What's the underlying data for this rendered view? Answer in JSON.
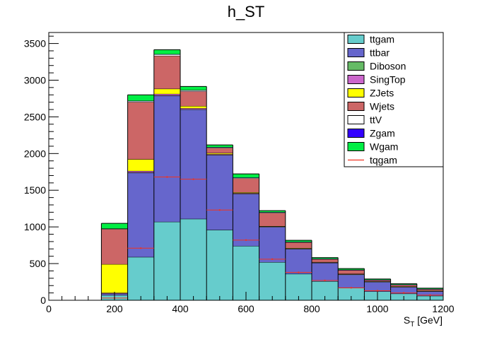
{
  "chart_data": {
    "type": "bar",
    "title": "h_ST",
    "xlabel": {
      "main": "S",
      "sub": "T",
      "unit": " [GeV]"
    },
    "ylabel": "",
    "xlim": [
      0,
      1200
    ],
    "ylim": [
      0,
      3650
    ],
    "x_ticks": [
      0,
      200,
      400,
      600,
      800,
      1000,
      1200
    ],
    "y_ticks": [
      0,
      500,
      1000,
      1500,
      2000,
      2500,
      3000,
      3500
    ],
    "bin_edges": [
      160,
      240,
      320,
      400,
      480,
      560,
      640,
      720,
      800,
      880,
      960,
      1040,
      1120,
      1200
    ],
    "stack_order": [
      "ttgam",
      "ttbar",
      "Diboson",
      "SingTop",
      "ZJets",
      "Wjets",
      "ttV",
      "Zgam",
      "Wgam"
    ],
    "series": [
      {
        "name": "ttgam",
        "color": "#66cccc",
        "values": [
          70,
          590,
          1070,
          1110,
          960,
          740,
          520,
          360,
          260,
          170,
          120,
          90,
          60
        ]
      },
      {
        "name": "ttbar",
        "color": "#6666cc",
        "values": [
          20,
          1150,
          1720,
          1490,
          1020,
          710,
          480,
          340,
          250,
          180,
          130,
          90,
          60
        ]
      },
      {
        "name": "Diboson",
        "color": "#66bb66",
        "values": [
          2,
          3,
          3,
          3,
          2,
          2,
          1,
          1,
          1,
          1,
          1,
          1,
          1
        ]
      },
      {
        "name": "SingTop",
        "color": "#cc66cc",
        "values": [
          10,
          20,
          20,
          15,
          10,
          10,
          5,
          5,
          5,
          5,
          5,
          5,
          5
        ]
      },
      {
        "name": "ZJets",
        "color": "#ffff00",
        "values": [
          390,
          160,
          70,
          30,
          15,
          10,
          5,
          5,
          5,
          5,
          5,
          5,
          5
        ]
      },
      {
        "name": "Wjets",
        "color": "#cc6666",
        "values": [
          480,
          780,
          450,
          200,
          70,
          190,
          180,
          80,
          40,
          50,
          15,
          20,
          20
        ]
      },
      {
        "name": "ttV",
        "color": "#ffffff",
        "values": [
          5,
          15,
          20,
          15,
          10,
          10,
          10,
          5,
          5,
          5,
          3,
          3,
          3
        ]
      },
      {
        "name": "Zgam",
        "color": "#3300ff",
        "values": [
          1,
          2,
          2,
          2,
          1,
          1,
          1,
          1,
          1,
          1,
          1,
          1,
          1
        ]
      },
      {
        "name": "Wgam",
        "color": "#00ee44",
        "values": [
          70,
          80,
          60,
          50,
          30,
          50,
          20,
          20,
          15,
          15,
          10,
          10,
          10
        ]
      }
    ],
    "points": {
      "name": "tqgam",
      "color": "#ee3322",
      "values": [
        30,
        710,
        1680,
        1650,
        1230,
        820,
        560,
        380,
        270,
        170,
        130,
        100,
        70
      ]
    },
    "legend": {
      "placement": "top-right",
      "entries": [
        {
          "name": "ttgam",
          "color": "#66cccc",
          "style": "box"
        },
        {
          "name": "ttbar",
          "color": "#6666cc",
          "style": "box"
        },
        {
          "name": "Diboson",
          "color": "#66bb66",
          "style": "box"
        },
        {
          "name": "SingTop",
          "color": "#cc66cc",
          "style": "box"
        },
        {
          "name": "ZJets",
          "color": "#ffff00",
          "style": "box"
        },
        {
          "name": "Wjets",
          "color": "#cc6666",
          "style": "box"
        },
        {
          "name": "ttV",
          "color": "#ffffff",
          "style": "box"
        },
        {
          "name": "Zgam",
          "color": "#3300ff",
          "style": "box"
        },
        {
          "name": "Wgam",
          "color": "#00ee44",
          "style": "box"
        },
        {
          "name": "tqgam",
          "color": "#ee3322",
          "style": "line"
        }
      ]
    },
    "grid": false
  }
}
